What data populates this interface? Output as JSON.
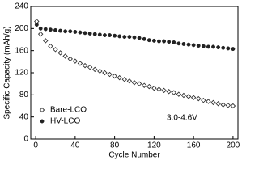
{
  "chart_data": {
    "type": "scatter",
    "xlabel": "Cycle Number",
    "ylabel": "Specific Capacity (mAh/g)",
    "annotation": "3.0-4.6V",
    "xlim": [
      -5,
      205
    ],
    "xticks": [
      0,
      40,
      80,
      120,
      160,
      200
    ],
    "ylim": [
      0,
      240
    ],
    "yticks": [
      0,
      40,
      80,
      120,
      160,
      200,
      240
    ],
    "legend": "lower left",
    "x": [
      1,
      5,
      10,
      15,
      20,
      25,
      30,
      35,
      40,
      45,
      50,
      55,
      60,
      65,
      70,
      75,
      80,
      85,
      90,
      95,
      100,
      105,
      110,
      115,
      120,
      125,
      130,
      135,
      140,
      145,
      150,
      155,
      160,
      165,
      170,
      175,
      180,
      185,
      190,
      195,
      200
    ],
    "series": [
      {
        "name": "Bare-LCO",
        "color": "#333333",
        "marker": "open-diamond",
        "values": [
          213,
          190,
          178,
          168,
          162,
          156,
          150,
          145,
          141,
          137,
          133,
          130,
          126,
          123,
          120,
          117,
          114,
          111,
          108,
          105,
          102,
          100,
          97,
          95,
          92,
          90,
          88,
          86,
          84,
          81,
          79,
          77,
          75,
          73,
          70,
          68,
          66,
          64,
          62,
          61,
          60
        ]
      },
      {
        "name": "HV-LCO",
        "color": "#222222",
        "marker": "filled-circle",
        "values": [
          207,
          200,
          199,
          198,
          197,
          196,
          195,
          195,
          194,
          193,
          192,
          191,
          190,
          189,
          188,
          188,
          187,
          186,
          185,
          185,
          184,
          183,
          181,
          179,
          178,
          177,
          177,
          176,
          175,
          173,
          172,
          171,
          170,
          169,
          168,
          167,
          167,
          166,
          165,
          164,
          163
        ]
      }
    ]
  }
}
